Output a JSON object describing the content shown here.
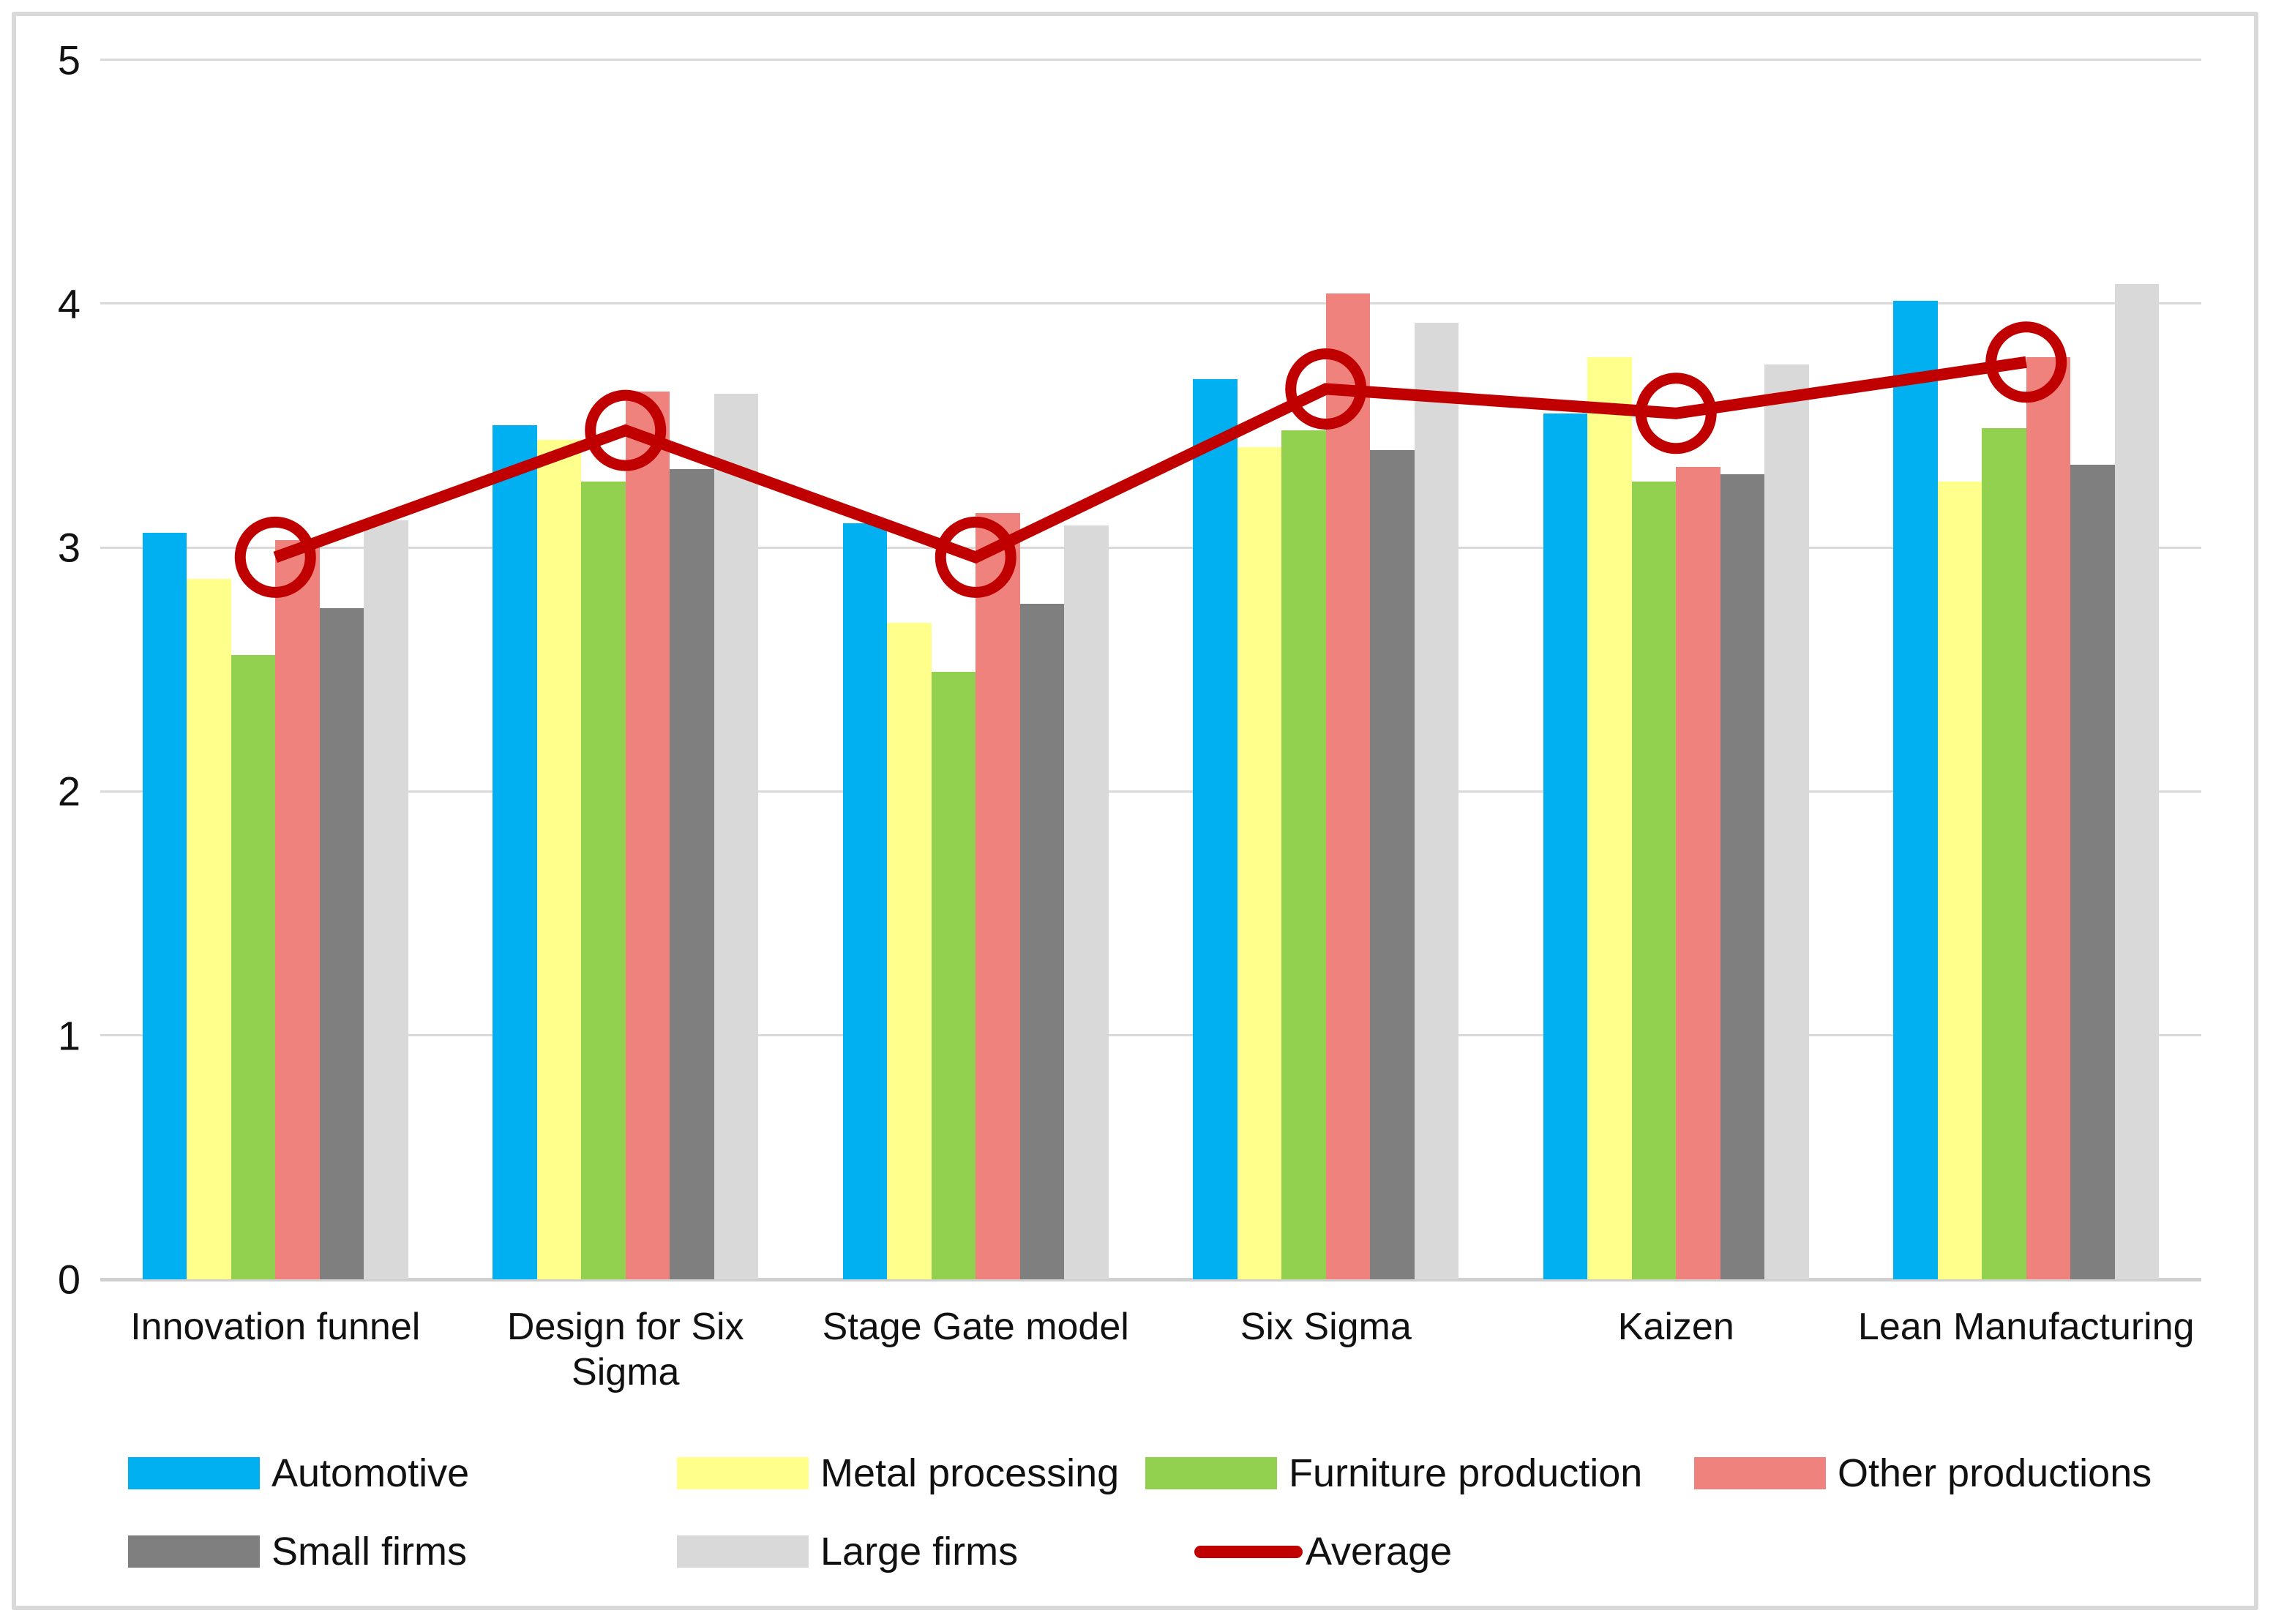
{
  "chart_data": {
    "type": "bar",
    "title": "",
    "xlabel": "",
    "ylabel": "",
    "ylim": [
      0,
      5
    ],
    "yticks": [
      0,
      1,
      2,
      3,
      4,
      5
    ],
    "grid": true,
    "legend_position": "bottom",
    "categories": [
      "Innovation funnel",
      "Design for Six Sigma",
      "Stage Gate model",
      "Six Sigma",
      "Kaizen",
      "Lean Manufacturing"
    ],
    "series": [
      {
        "name": "Automotive",
        "color": "#00B0F0",
        "values": [
          3.06,
          3.5,
          3.1,
          3.69,
          3.55,
          4.01
        ]
      },
      {
        "name": "Metal processing",
        "color": "#FFFF8C",
        "values": [
          2.87,
          3.44,
          2.69,
          3.41,
          3.78,
          3.27
        ]
      },
      {
        "name": "Furniture production",
        "color": "#92D050",
        "values": [
          2.56,
          3.27,
          2.49,
          3.48,
          3.27,
          3.49
        ]
      },
      {
        "name": "Other productions",
        "color": "#F0827D",
        "values": [
          3.03,
          3.64,
          3.14,
          4.04,
          3.33,
          3.78
        ]
      },
      {
        "name": "Small firms",
        "color": "#7F7F7F",
        "values": [
          2.75,
          3.32,
          2.77,
          3.4,
          3.3,
          3.34
        ]
      },
      {
        "name": "Large firms",
        "color": "#D9D9D9",
        "values": [
          3.11,
          3.63,
          3.09,
          3.92,
          3.75,
          4.08
        ]
      }
    ],
    "line_series": {
      "name": "Average",
      "color": "#C00000",
      "values": [
        2.96,
        3.48,
        2.96,
        3.65,
        3.55,
        3.76
      ]
    },
    "colors": {
      "gridline": "#D9D9D9",
      "axis_baseline": "#D0D0D0",
      "frame_border": "#D9D9D9",
      "text": "#111111",
      "average_line": "#C00000"
    }
  }
}
